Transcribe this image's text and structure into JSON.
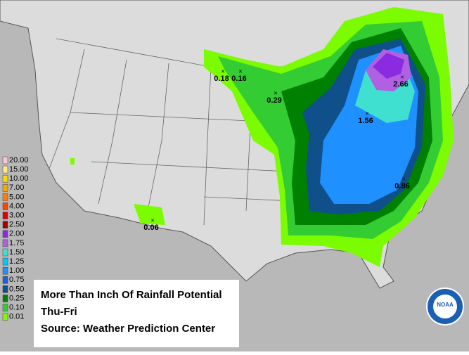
{
  "legend": [
    {
      "label": "20.00",
      "color": "#ffbfd9"
    },
    {
      "label": "15.00",
      "color": "#ffe680"
    },
    {
      "label": "10.00",
      "color": "#ffd700"
    },
    {
      "label": "7.00",
      "color": "#ffa500"
    },
    {
      "label": "5.00",
      "color": "#ff7f00"
    },
    {
      "label": "4.00",
      "color": "#ff4500"
    },
    {
      "label": "3.00",
      "color": "#e00000"
    },
    {
      "label": "2.50",
      "color": "#a00000"
    },
    {
      "label": "2.00",
      "color": "#8a2be2"
    },
    {
      "label": "1.75",
      "color": "#b060e0"
    },
    {
      "label": "1.50",
      "color": "#40e0d0"
    },
    {
      "label": "1.25",
      "color": "#00c8ff"
    },
    {
      "label": "1.00",
      "color": "#1e90ff"
    },
    {
      "label": "0.75",
      "color": "#2060d0"
    },
    {
      "label": "0.50",
      "color": "#10508a"
    },
    {
      "label": "0.25",
      "color": "#008000"
    },
    {
      "label": "0.10",
      "color": "#33cc33"
    },
    {
      "label": "0.01",
      "color": "#7cfc00"
    }
  ],
  "annotations": [
    "0.18",
    "0.16",
    "0.29",
    "2.66",
    "1.56",
    "0.86",
    "0.06"
  ],
  "caption": {
    "line1": "More Than Inch Of Rainfall Potential",
    "line2": "Thu-Fri",
    "line3": "Source: Weather Prediction Center"
  },
  "logo": "NOAA"
}
